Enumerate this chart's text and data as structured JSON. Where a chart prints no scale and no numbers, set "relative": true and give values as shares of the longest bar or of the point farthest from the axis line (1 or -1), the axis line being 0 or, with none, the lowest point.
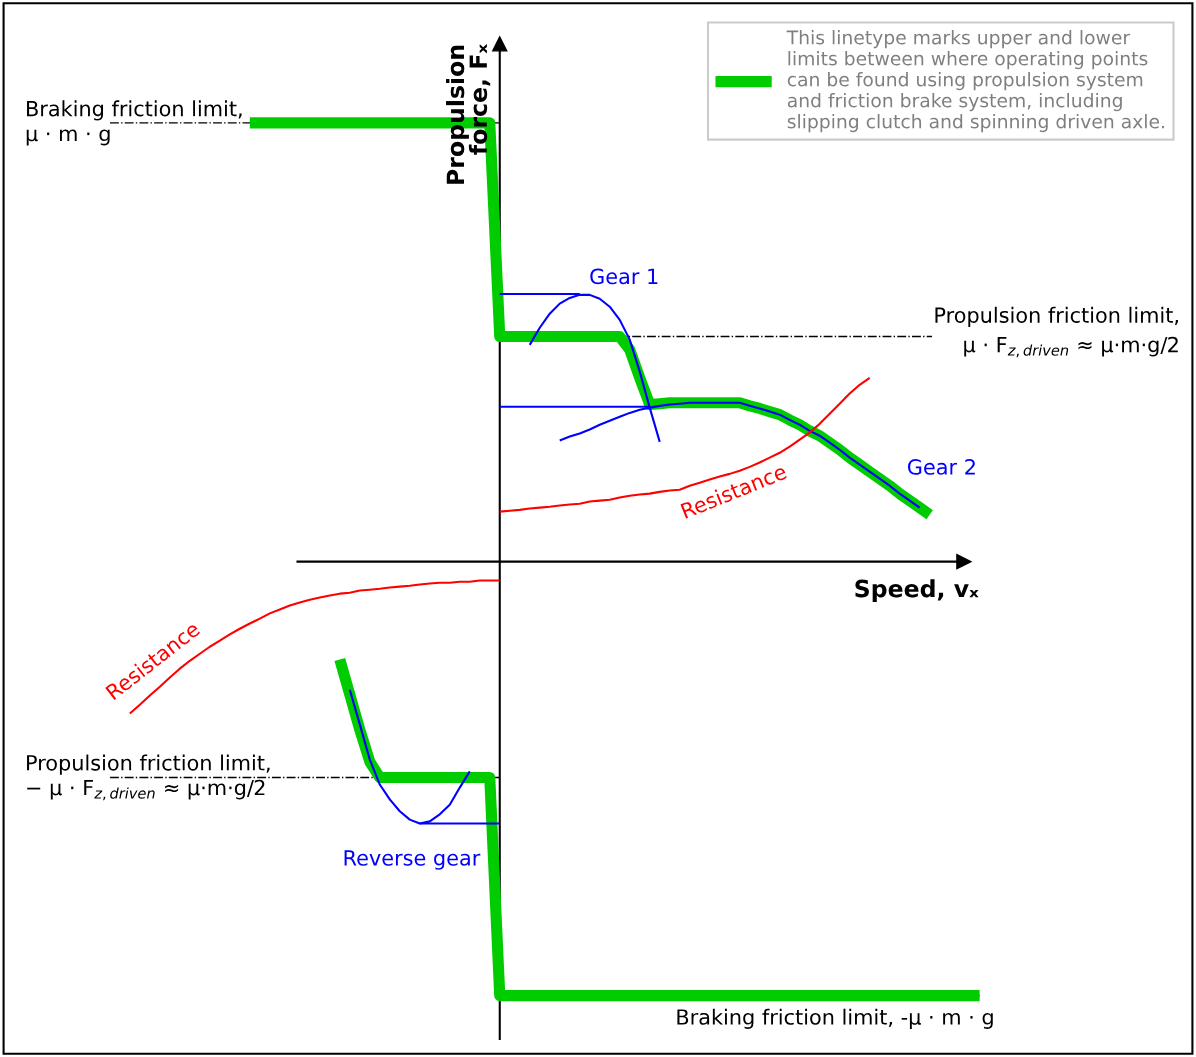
{
  "chart_data": {
    "type": "line",
    "relative": true,
    "legend": "top right",
    "marker": "none",
    "line_style": "solid",
    "xlabel": "Speed, vₓ",
    "ylabel": "Propulsion\nforce, Fₓ",
    "categories": [
      null,
      null,
      null,
      null,
      null,
      null,
      null,
      null,
      null,
      null,
      null,
      null,
      null,
      null,
      null,
      null,
      null,
      null,
      null,
      null,
      null,
      null,
      null,
      null,
      null,
      null,
      null,
      null,
      null,
      null,
      null,
      null,
      null,
      null,
      null,
      null,
      null,
      null,
      null,
      null,
      null,
      null,
      null,
      null,
      null,
      null,
      null,
      null,
      null,
      null,
      null,
      null,
      null,
      null,
      null,
      null,
      null,
      null,
      null,
      null,
      null,
      null,
      null,
      null,
      null,
      null,
      null,
      null,
      null,
      null,
      null,
      null,
      null,
      null,
      null,
      null,
      null,
      null,
      null,
      null,
      null,
      null,
      null,
      null,
      null,
      null
    ],
    "series": [
      {
        "name": "This linetype marks upper and lower\nlimits between where operating points\ncan be found using propulsion system\nand friction brake system, including\nslipping clutch and spinning driven axle.",
        "color": "#00cc00",
        "values": [
          null,
          null,
          null,
          null,
          null,
          null,
          null,
          null,
          null,
          null,
          null,
          null,
          1.0,
          1.0,
          1.0,
          1.0,
          1.0,
          1.0,
          1.0,
          1.0,
          1.0,
          1.0,
          1.0,
          1.0,
          1.0,
          1.0,
          1.0,
          1.0,
          1.0,
          1.0,
          1.0,
          1.0,
          1.0,
          1.0,
          1.0,
          1.0,
          1.0,
          0.513,
          0.513,
          0.513,
          0.513,
          0.513,
          0.513,
          0.513,
          0.513,
          0.513,
          0.513,
          0.513,
          0.513,
          0.513,
          0.483,
          0.419,
          0.358,
          0.36,
          0.362,
          0.362,
          0.362,
          0.362,
          0.362,
          0.362,
          0.362,
          0.362,
          0.355,
          0.349,
          0.342,
          0.335,
          0.323,
          0.312,
          0.298,
          0.287,
          0.271,
          0.255,
          0.237,
          0.221,
          0.205,
          0.189,
          0.173,
          0.155,
          0.139,
          0.123,
          0.107,
          null,
          null,
          null,
          null,
          null
        ]
      },
      {
        "color": "#00cc00",
        "values": [
          null,
          null,
          null,
          null,
          null,
          null,
          null,
          null,
          null,
          null,
          null,
          null,
          null,
          null,
          null,
          null,
          null,
          null,
          null,
          null,
          null,
          -0.223,
          -0.303,
          -0.383,
          -0.456,
          -0.492,
          -0.492,
          -0.492,
          -0.492,
          -0.492,
          -0.492,
          -0.492,
          -0.492,
          -0.492,
          -0.492,
          -0.492,
          -0.492,
          -0.989,
          -0.989,
          -0.989,
          -0.989,
          -0.989,
          -0.989,
          -0.989,
          -0.989,
          -0.989,
          -0.989,
          -0.989,
          -0.989,
          -0.989,
          -0.989,
          -0.989,
          -0.989,
          -0.989,
          -0.989,
          -0.989,
          -0.989,
          -0.989,
          -0.989,
          -0.989,
          -0.989,
          -0.989,
          -0.989,
          -0.989,
          -0.989,
          -0.989,
          -0.989,
          -0.989,
          -0.989,
          -0.989,
          -0.989,
          -0.989,
          -0.989,
          -0.989,
          -0.989,
          -0.989,
          -0.989,
          -0.989,
          -0.989,
          -0.989,
          -0.989,
          -0.989,
          -0.989,
          -0.989,
          -0.989,
          -0.989
        ]
      },
      {
        "name": "Gear 1",
        "color": "#0000ff",
        "values": [
          null,
          null,
          null,
          null,
          null,
          null,
          null,
          null,
          null,
          null,
          null,
          null,
          null,
          null,
          null,
          null,
          null,
          null,
          null,
          null,
          null,
          null,
          null,
          null,
          null,
          null,
          null,
          null,
          null,
          null,
          null,
          null,
          null,
          null,
          null,
          null,
          null,
          null,
          null,
          null,
          0.494,
          0.533,
          0.565,
          0.588,
          0.601,
          0.608,
          0.608,
          0.599,
          0.581,
          0.551,
          0.506,
          0.433,
          0.351,
          0.273,
          null,
          null,
          null,
          null,
          null,
          null,
          null,
          null,
          null,
          null,
          null,
          null,
          null,
          null,
          null,
          null,
          null,
          null,
          null,
          null,
          null,
          null,
          null,
          null,
          null,
          null,
          null,
          null,
          null,
          null,
          null,
          null
        ]
      },
      {
        "color": "#0000ff",
        "values": [
          null,
          null,
          null,
          null,
          null,
          null,
          null,
          null,
          null,
          null,
          null,
          null,
          null,
          null,
          null,
          null,
          null,
          null,
          null,
          null,
          null,
          null,
          null,
          null,
          null,
          null,
          null,
          null,
          null,
          null,
          null,
          null,
          null,
          null,
          null,
          null,
          null,
          0.61,
          0.61,
          0.61,
          0.61,
          0.61,
          0.61,
          0.61,
          0.61,
          0.61,
          null,
          null,
          null,
          null,
          null,
          null,
          null,
          null,
          null,
          null,
          null,
          null,
          null,
          null,
          null,
          null,
          null,
          null,
          null,
          null,
          null,
          null,
          null,
          null,
          null,
          null,
          null,
          null,
          null,
          null,
          null,
          null,
          null,
          null,
          null,
          null,
          null,
          null,
          null,
          null
        ]
      },
      {
        "color": "#0000ff",
        "values": [
          null,
          null,
          null,
          null,
          null,
          null,
          null,
          null,
          null,
          null,
          null,
          null,
          null,
          null,
          null,
          null,
          null,
          null,
          null,
          null,
          null,
          null,
          null,
          null,
          null,
          null,
          null,
          null,
          null,
          null,
          null,
          null,
          null,
          null,
          null,
          null,
          null,
          0.353,
          0.353,
          0.353,
          0.353,
          0.353,
          0.353,
          0.353,
          0.353,
          0.353,
          0.353,
          0.353,
          0.353,
          0.353,
          0.353,
          0.353,
          0.353,
          null,
          null,
          null,
          null,
          null,
          null,
          null,
          null,
          null,
          null,
          null,
          null,
          null,
          null,
          null,
          null,
          null,
          null,
          null,
          null,
          null,
          null,
          null,
          null,
          null,
          null,
          null,
          null,
          null,
          null,
          null,
          null,
          null
        ]
      },
      {
        "name": "Gear 2",
        "color": "#0000ff",
        "values": [
          null,
          null,
          null,
          null,
          null,
          null,
          null,
          null,
          null,
          null,
          null,
          null,
          null,
          null,
          null,
          null,
          null,
          null,
          null,
          null,
          null,
          null,
          null,
          null,
          null,
          null,
          null,
          null,
          null,
          null,
          null,
          null,
          null,
          null,
          null,
          null,
          null,
          null,
          null,
          null,
          null,
          null,
          null,
          0.276,
          0.285,
          0.292,
          0.301,
          0.312,
          0.321,
          0.33,
          0.339,
          0.346,
          0.351,
          0.355,
          0.358,
          0.36,
          0.362,
          0.362,
          0.362,
          0.362,
          0.362,
          0.362,
          0.355,
          0.349,
          0.342,
          0.335,
          0.323,
          0.312,
          0.298,
          0.287,
          0.271,
          0.255,
          0.237,
          0.221,
          0.205,
          0.189,
          0.173,
          0.155,
          0.139,
          0.123,
          null,
          null,
          null,
          null,
          null,
          null
        ]
      },
      {
        "name": "Reverse gear",
        "color": "#0000ff",
        "values": [
          null,
          null,
          null,
          null,
          null,
          null,
          null,
          null,
          null,
          null,
          null,
          null,
          null,
          null,
          null,
          null,
          null,
          null,
          null,
          null,
          null,
          null,
          -0.292,
          -0.371,
          -0.451,
          -0.508,
          -0.542,
          -0.569,
          -0.588,
          -0.597,
          -0.592,
          -0.576,
          -0.554,
          -0.515,
          -0.478,
          null,
          null,
          null,
          null,
          null,
          null,
          null,
          null,
          null,
          null,
          null,
          null,
          null,
          null,
          null,
          null,
          null,
          null,
          null,
          null,
          null,
          null,
          null,
          null,
          null,
          null,
          null,
          null,
          null,
          null,
          null,
          null,
          null,
          null,
          null,
          null,
          null,
          null,
          null,
          null,
          null,
          null,
          null,
          null,
          null,
          null,
          null,
          null,
          null,
          null,
          null
        ]
      },
      {
        "color": "#0000ff",
        "values": [
          null,
          null,
          null,
          null,
          null,
          null,
          null,
          null,
          null,
          null,
          null,
          null,
          null,
          null,
          null,
          null,
          null,
          null,
          null,
          null,
          null,
          null,
          null,
          null,
          null,
          null,
          null,
          null,
          null,
          -0.597,
          -0.597,
          -0.597,
          -0.597,
          -0.597,
          -0.597,
          -0.597,
          -0.597,
          -0.597,
          null,
          null,
          null,
          null,
          null,
          null,
          null,
          null,
          null,
          null,
          null,
          null,
          null,
          null,
          null,
          null,
          null,
          null,
          null,
          null,
          null,
          null,
          null,
          null,
          null,
          null,
          null,
          null,
          null,
          null,
          null,
          null,
          null,
          null,
          null,
          null,
          null,
          null,
          null,
          null,
          null,
          null,
          null,
          null,
          null,
          null,
          null,
          null
        ]
      },
      {
        "name": "Resistance",
        "color": "#ff0000",
        "values": [
          null,
          null,
          null,
          null,
          null,
          null,
          null,
          null,
          null,
          null,
          null,
          null,
          null,
          null,
          null,
          null,
          null,
          null,
          null,
          null,
          null,
          null,
          null,
          null,
          null,
          null,
          null,
          null,
          null,
          null,
          null,
          null,
          null,
          null,
          null,
          null,
          null,
          0.114,
          0.116,
          0.118,
          0.121,
          0.123,
          0.125,
          0.128,
          0.13,
          0.132,
          0.137,
          0.139,
          0.141,
          0.146,
          0.15,
          0.153,
          0.155,
          0.159,
          0.162,
          0.164,
          0.173,
          0.18,
          0.187,
          0.194,
          0.2,
          0.207,
          0.216,
          0.226,
          0.237,
          0.248,
          0.262,
          0.278,
          0.294,
          0.314,
          0.337,
          0.36,
          0.383,
          0.403,
          0.419,
          null,
          null,
          null,
          null,
          null,
          null,
          null,
          null,
          null,
          null,
          null
        ]
      },
      {
        "name": "Resistance",
        "color": "#ff0000",
        "values": [
          -0.346,
          -0.326,
          -0.305,
          -0.285,
          -0.264,
          -0.244,
          -0.226,
          -0.21,
          -0.194,
          -0.18,
          -0.166,
          -0.153,
          -0.141,
          -0.13,
          -0.118,
          -0.109,
          -0.1,
          -0.093,
          -0.087,
          -0.082,
          -0.077,
          -0.073,
          -0.071,
          -0.066,
          -0.064,
          -0.062,
          -0.059,
          -0.057,
          -0.055,
          -0.052,
          -0.05,
          -0.048,
          -0.048,
          -0.046,
          -0.046,
          -0.043,
          -0.043,
          -0.043,
          null,
          null,
          null,
          null,
          null,
          null,
          null,
          null,
          null,
          null,
          null,
          null,
          null,
          null,
          null,
          null,
          null,
          null,
          null,
          null,
          null,
          null,
          null,
          null,
          null,
          null,
          null,
          null,
          null,
          null,
          null,
          null,
          null,
          null,
          null,
          null,
          null,
          null,
          null,
          null,
          null,
          null,
          null,
          null,
          null,
          null,
          null,
          null
        ]
      }
    ],
    "ref_lines": [
      {
        "axis": "y",
        "value": 1.0,
        "label": "Braking friction limit,\nμ · m · g",
        "color": "#000000",
        "line_style": "dashdot"
      },
      {
        "axis": "y",
        "value": 0.513,
        "label": "Propulsion friction limit,\nμ · F$_{z,driven}$ ≈ μ·m·g/2",
        "color": "#000000",
        "line_style": "dashdot"
      },
      {
        "axis": "y",
        "value": -0.492,
        "label": "Propulsion friction limit,\n− μ · F$_{z,driven}$ ≈ μ·m·g/2",
        "color": "#000000",
        "line_style": "dashdot"
      },
      {
        "axis": "y",
        "value": -0.989,
        "label": "Braking friction limit, -μ · m · g",
        "color": "#000000",
        "line_style": "dashdot"
      }
    ]
  }
}
